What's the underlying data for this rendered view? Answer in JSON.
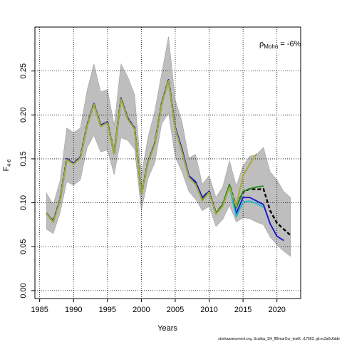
{
  "chart_data": {
    "type": "line",
    "xlabel": "Years",
    "ylabel_main": "F",
    "ylabel_sub": "4-6",
    "xlim": [
      1984.3,
      2023.5
    ],
    "ylim": [
      -0.009,
      0.3
    ],
    "xticks": [
      1985,
      1990,
      1995,
      2000,
      2005,
      2010,
      2015,
      2020
    ],
    "yticks": [
      0.0,
      0.05,
      0.1,
      0.15,
      0.2,
      0.25
    ],
    "ytick_labels": [
      "0.00",
      "0.05",
      "0.10",
      "0.15",
      "0.20",
      "0.25"
    ],
    "grid": true,
    "annotation": {
      "rho_symbol": "ρ",
      "rho_sub": "Mohn",
      "rho_value": " = -6%"
    },
    "footnote": "stockassessment.org, Scallop_SH_ffBrearCor_testK, r17663, git:ec2a0c6dde",
    "band": {
      "x": [
        1986,
        1987,
        1988,
        1989,
        1990,
        1991,
        1992,
        1993,
        1994,
        1995,
        1996,
        1997,
        1998,
        1999,
        2000,
        2001,
        2002,
        2003,
        2004,
        2005,
        2006,
        2007,
        2008,
        2009,
        2010,
        2011,
        2012,
        2013,
        2014,
        2015,
        2016,
        2017,
        2018,
        2019,
        2020,
        2021,
        2022
      ],
      "upper": [
        0.111,
        0.098,
        0.125,
        0.185,
        0.18,
        0.185,
        0.228,
        0.258,
        0.226,
        0.229,
        0.188,
        0.258,
        0.243,
        0.223,
        0.132,
        0.175,
        0.205,
        0.247,
        0.289,
        0.217,
        0.192,
        0.151,
        0.155,
        0.121,
        0.131,
        0.106,
        0.118,
        0.148,
        0.119,
        0.142,
        0.153,
        0.155,
        0.163,
        0.135,
        0.126,
        0.113,
        0.106
      ],
      "lower": [
        0.07,
        0.065,
        0.088,
        0.124,
        0.12,
        0.126,
        0.163,
        0.177,
        0.158,
        0.16,
        0.132,
        0.174,
        0.171,
        0.161,
        0.091,
        0.128,
        0.146,
        0.19,
        0.202,
        0.152,
        0.135,
        0.113,
        0.104,
        0.091,
        0.096,
        0.073,
        0.081,
        0.097,
        0.078,
        0.083,
        0.082,
        0.078,
        0.075,
        0.061,
        0.052,
        0.045,
        0.039
      ]
    },
    "series": [
      {
        "color": "#000000",
        "dashed": true,
        "x": [
          1986,
          1987,
          1988,
          1989,
          1990,
          1991,
          1992,
          1993,
          1994,
          1995,
          1996,
          1997,
          1998,
          1999,
          2000,
          2001,
          2002,
          2003,
          2004,
          2005,
          2006,
          2007,
          2008,
          2009,
          2010,
          2011,
          2012,
          2013,
          2014,
          2015,
          2016,
          2017,
          2018,
          2019,
          2020,
          2021,
          2022
        ],
        "values": [
          0.088,
          0.079,
          0.103,
          0.15,
          0.145,
          0.152,
          0.188,
          0.213,
          0.188,
          0.192,
          0.156,
          0.219,
          0.196,
          0.185,
          0.11,
          0.147,
          0.168,
          0.213,
          0.24,
          0.185,
          0.159,
          0.13,
          0.123,
          0.106,
          0.113,
          0.088,
          0.098,
          0.12,
          0.096,
          0.112,
          0.116,
          0.115,
          0.116,
          0.091,
          0.077,
          0.07,
          0.063
        ]
      },
      {
        "color": "#1a1acc",
        "dashed": false,
        "x": [
          1986,
          1987,
          1988,
          1989,
          1990,
          1991,
          1992,
          1993,
          1994,
          1995,
          1996,
          1997,
          1998,
          1999,
          2000,
          2001,
          2002,
          2003,
          2004,
          2005,
          2006,
          2007,
          2008,
          2009,
          2010,
          2011,
          2012,
          2013,
          2014,
          2015,
          2016,
          2017,
          2018,
          2019,
          2020,
          2021
        ],
        "values": [
          0.088,
          0.079,
          0.103,
          0.15,
          0.145,
          0.152,
          0.188,
          0.213,
          0.188,
          0.192,
          0.156,
          0.219,
          0.196,
          0.185,
          0.11,
          0.147,
          0.168,
          0.213,
          0.24,
          0.186,
          0.161,
          0.131,
          0.124,
          0.106,
          0.113,
          0.088,
          0.098,
          0.119,
          0.088,
          0.106,
          0.106,
          0.102,
          0.098,
          0.076,
          0.062,
          0.057
        ]
      },
      {
        "color": "#22bbcc",
        "dashed": false,
        "x": [
          1986,
          1987,
          1988,
          1989,
          1990,
          1991,
          1992,
          1993,
          1994,
          1995,
          1996,
          1997,
          1998,
          1999,
          2000,
          2001,
          2002,
          2003,
          2004,
          2005,
          2006,
          2007,
          2008,
          2009,
          2010,
          2011,
          2012,
          2013,
          2014,
          2015,
          2016,
          2017,
          2018
        ],
        "values": [
          0.088,
          0.078,
          0.102,
          0.149,
          0.144,
          0.151,
          0.187,
          0.212,
          0.187,
          0.191,
          0.156,
          0.218,
          0.195,
          0.184,
          0.11,
          0.146,
          0.167,
          0.212,
          0.239,
          0.184,
          0.158,
          0.129,
          0.121,
          0.103,
          0.112,
          0.087,
          0.096,
          0.118,
          0.084,
          0.101,
          0.102,
          0.099,
          0.095
        ]
      },
      {
        "color": "#228b22",
        "dashed": false,
        "x": [
          1986,
          1987,
          1988,
          1989,
          1990,
          1991,
          1992,
          1993,
          1994,
          1995,
          1996,
          1997,
          1998,
          1999,
          2000,
          2001,
          2002,
          2003,
          2004,
          2005,
          2006,
          2007,
          2008,
          2009,
          2010,
          2011,
          2012,
          2013,
          2014,
          2015,
          2016,
          2017,
          2018
        ],
        "values": [
          0.088,
          0.078,
          0.102,
          0.149,
          0.144,
          0.151,
          0.187,
          0.212,
          0.187,
          0.191,
          0.156,
          0.218,
          0.195,
          0.184,
          0.11,
          0.146,
          0.167,
          0.212,
          0.239,
          0.184,
          0.158,
          0.129,
          0.121,
          0.103,
          0.112,
          0.088,
          0.098,
          0.121,
          0.094,
          0.113,
          0.116,
          0.118,
          0.119
        ]
      },
      {
        "color": "#aaaa33",
        "dashed": false,
        "x": [
          1986,
          1987,
          1988,
          1989,
          1990,
          1991,
          1992,
          1993,
          1994,
          1995,
          1996,
          1997,
          1998,
          1999,
          2000,
          2001,
          2002,
          2003,
          2004,
          2005,
          2006,
          2007,
          2008,
          2009,
          2010,
          2011,
          2012,
          2013,
          2014,
          2015,
          2016,
          2017
        ],
        "values": [
          0.088,
          0.078,
          0.102,
          0.149,
          0.144,
          0.151,
          0.187,
          0.212,
          0.187,
          0.191,
          0.156,
          0.218,
          0.195,
          0.184,
          0.11,
          0.146,
          0.167,
          0.212,
          0.239,
          0.184,
          0.158,
          0.129,
          0.121,
          0.102,
          0.112,
          0.087,
          0.096,
          0.118,
          0.096,
          0.131,
          0.144,
          0.156
        ]
      }
    ]
  }
}
